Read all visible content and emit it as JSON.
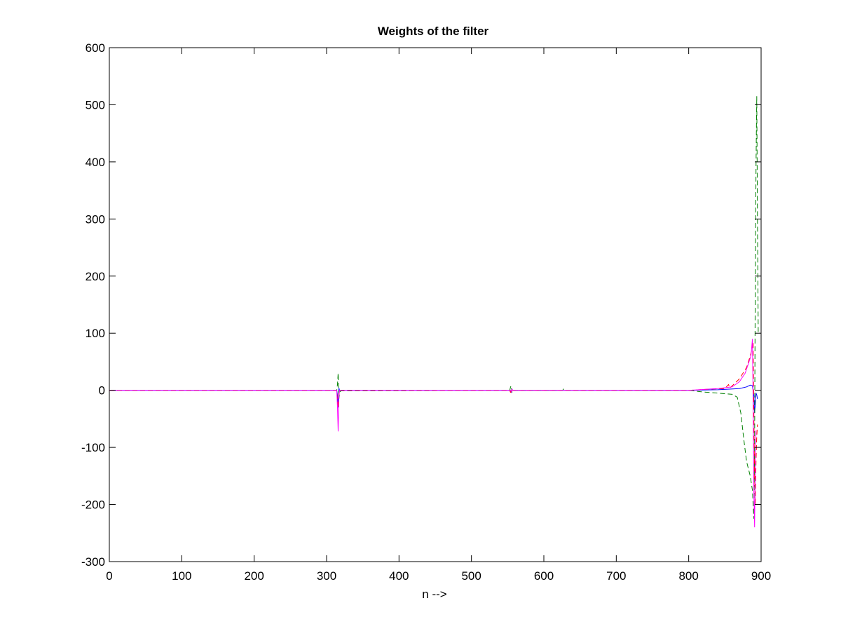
{
  "chart_data": {
    "type": "line",
    "title": "Weights of the filter",
    "xlabel": "n -->",
    "ylabel": "",
    "xlim": [
      0,
      900
    ],
    "ylim": [
      -300,
      600
    ],
    "xticks": [
      0,
      100,
      200,
      300,
      400,
      500,
      600,
      700,
      800,
      900
    ],
    "yticks": [
      -300,
      -200,
      -100,
      0,
      100,
      200,
      300,
      400,
      500,
      600
    ],
    "grid": false,
    "legend": "none",
    "series": [
      {
        "color": "#0000ff",
        "style": "solid",
        "points": [
          [
            0,
            0
          ],
          [
            314,
            0
          ],
          [
            315,
            -8
          ],
          [
            316,
            -30
          ],
          [
            317,
            4
          ],
          [
            318,
            -1
          ],
          [
            320,
            0
          ],
          [
            554,
            0
          ],
          [
            555,
            -3
          ],
          [
            556,
            2
          ],
          [
            557,
            0
          ],
          [
            800,
            0
          ],
          [
            840,
            1
          ],
          [
            870,
            3
          ],
          [
            880,
            6
          ],
          [
            885,
            9
          ],
          [
            888,
            8
          ],
          [
            890,
            -10
          ],
          [
            891,
            -40
          ],
          [
            892,
            -25
          ],
          [
            893,
            -5
          ],
          [
            894,
            -8
          ],
          [
            895,
            -15
          ]
        ]
      },
      {
        "color": "#008000",
        "style": "dashed",
        "points": [
          [
            0,
            0
          ],
          [
            314,
            0
          ],
          [
            315,
            10
          ],
          [
            316,
            30
          ],
          [
            317,
            -15
          ],
          [
            318,
            -3
          ],
          [
            320,
            -1
          ],
          [
            553,
            0
          ],
          [
            554,
            6
          ],
          [
            555,
            8
          ],
          [
            556,
            -4
          ],
          [
            557,
            0
          ],
          [
            626,
            0
          ],
          [
            627,
            2
          ],
          [
            628,
            0
          ],
          [
            800,
            0
          ],
          [
            820,
            -3
          ],
          [
            840,
            -5
          ],
          [
            860,
            -7
          ],
          [
            867,
            -12
          ],
          [
            872,
            -40
          ],
          [
            876,
            -85
          ],
          [
            880,
            -125
          ],
          [
            885,
            -150
          ],
          [
            888,
            -175
          ],
          [
            889,
            -200
          ],
          [
            890,
            -225
          ],
          [
            891,
            -100
          ],
          [
            892,
            200
          ],
          [
            893,
            400
          ],
          [
            894,
            515
          ],
          [
            895,
            300
          ],
          [
            896,
            100
          ]
        ]
      },
      {
        "color": "#ff0000",
        "style": "dashed",
        "points": [
          [
            0,
            0
          ],
          [
            314,
            0
          ],
          [
            315,
            -15
          ],
          [
            316,
            -30
          ],
          [
            317,
            -5
          ],
          [
            318,
            0
          ],
          [
            553,
            0
          ],
          [
            554,
            -4
          ],
          [
            555,
            3
          ],
          [
            556,
            0
          ],
          [
            800,
            0
          ],
          [
            830,
            2
          ],
          [
            850,
            3
          ],
          [
            855,
            10
          ],
          [
            857,
            4
          ],
          [
            870,
            20
          ],
          [
            880,
            40
          ],
          [
            885,
            60
          ],
          [
            888,
            75
          ],
          [
            889,
            85
          ],
          [
            890,
            -50
          ],
          [
            891,
            -150
          ],
          [
            892,
            -200
          ],
          [
            893,
            -120
          ],
          [
            894,
            -80
          ],
          [
            895,
            -60
          ]
        ]
      },
      {
        "color": "#ff00ff",
        "style": "solid",
        "points": [
          [
            0,
            0
          ],
          [
            314,
            0
          ],
          [
            315,
            -30
          ],
          [
            316,
            -72
          ],
          [
            317,
            -10
          ],
          [
            318,
            0
          ],
          [
            554,
            0
          ],
          [
            555,
            -3
          ],
          [
            556,
            2
          ],
          [
            557,
            0
          ],
          [
            800,
            0
          ],
          [
            840,
            3
          ],
          [
            860,
            6
          ],
          [
            870,
            15
          ],
          [
            878,
            30
          ],
          [
            882,
            45
          ],
          [
            886,
            60
          ],
          [
            888,
            90
          ],
          [
            889,
            -20
          ],
          [
            890,
            -180
          ],
          [
            891,
            -240
          ],
          [
            892,
            -130
          ],
          [
            893,
            -70
          ]
        ]
      }
    ]
  }
}
